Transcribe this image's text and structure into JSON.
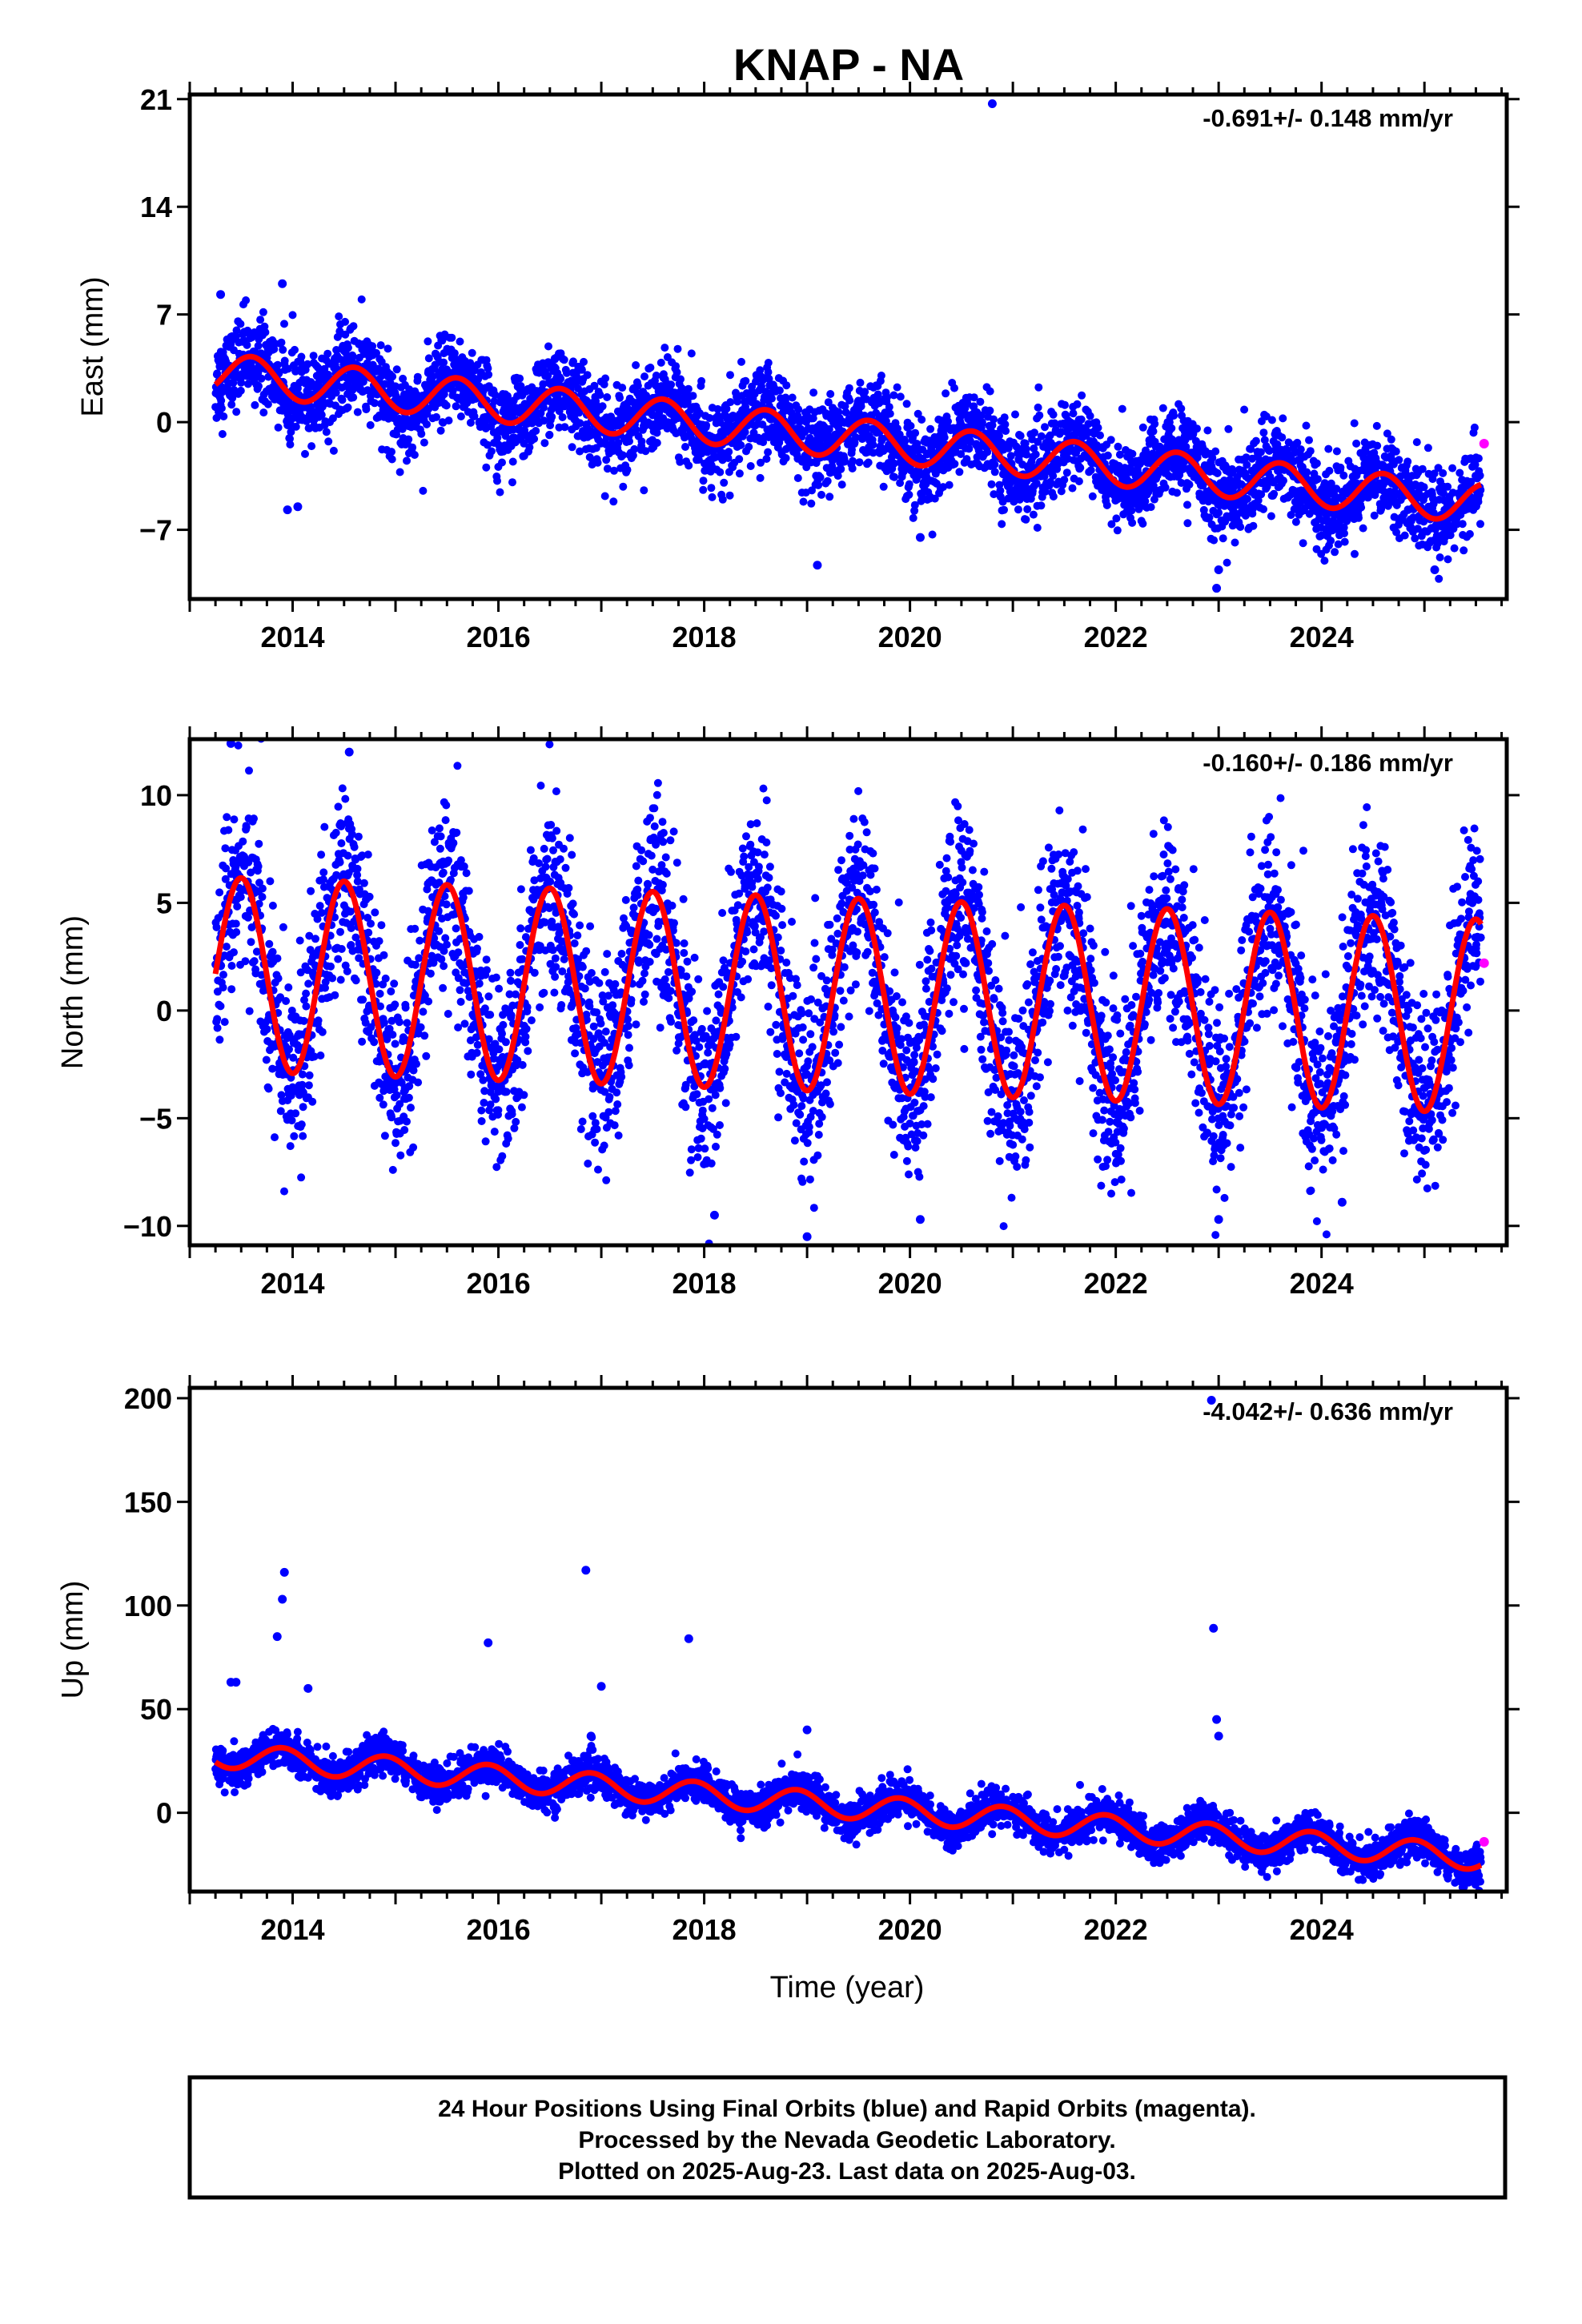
{
  "title": "KNAP - NA",
  "chart_data": [
    {
      "type": "scatter",
      "panel": "east",
      "ylabel": "East (mm)",
      "rate_label": "-0.691+/- 0.148 mm/yr",
      "ylim": [
        -11.5,
        21.3
      ],
      "yticks": [
        {
          "value": 21,
          "label": "21"
        },
        {
          "value": 14,
          "label": "14"
        },
        {
          "value": 7,
          "label": "7"
        },
        {
          "value": 0,
          "label": "0"
        },
        {
          "value": -7,
          "label": "−7"
        }
      ],
      "xlim": [
        2013.0,
        2025.8
      ],
      "xticks": [
        {
          "value": 2014,
          "label": "2014"
        },
        {
          "value": 2016,
          "label": "2016"
        },
        {
          "value": 2018,
          "label": "2018"
        },
        {
          "value": 2020,
          "label": "2020"
        },
        {
          "value": 2022,
          "label": "2022"
        },
        {
          "value": 2024,
          "label": "2024"
        }
      ],
      "model": {
        "start": 2013.25,
        "end": 2025.55,
        "intercept": 3.2,
        "slope": -0.691,
        "amplitude": 1.3,
        "peak": 0.6
      },
      "scatter_width": 1.4,
      "outliers": [
        [
          2013.3,
          8.3
        ],
        [
          2013.9,
          9.0
        ],
        [
          2014.05,
          -5.5
        ],
        [
          2013.95,
          -5.7
        ],
        [
          2019.1,
          -9.3
        ],
        [
          2020.1,
          -7.5
        ],
        [
          2020.8,
          20.7
        ],
        [
          2022.98,
          -10.8
        ],
        [
          2023.0,
          -9.6
        ],
        [
          2025.1,
          -9.6
        ]
      ],
      "series": [
        {
          "name": "Final Orbits",
          "color": "#0000ff"
        },
        {
          "name": "Rapid Orbits",
          "color": "#ff00ff",
          "points": [
            [
              2025.58,
              -1.4
            ]
          ]
        },
        {
          "name": "Model",
          "color": "#ff0000"
        }
      ]
    },
    {
      "type": "scatter",
      "panel": "north",
      "ylabel": "North (mm)",
      "rate_label": "-0.160+/- 0.186 mm/yr",
      "ylim": [
        -10.9,
        12.6
      ],
      "yticks": [
        {
          "value": 10,
          "label": "10"
        },
        {
          "value": 5,
          "label": "5"
        },
        {
          "value": 0,
          "label": "0"
        },
        {
          "value": -5,
          "label": "−5"
        },
        {
          "value": -10,
          "label": "−10"
        }
      ],
      "xlim": [
        2013.0,
        2025.8
      ],
      "xticks": [
        {
          "value": 2014,
          "label": "2014"
        },
        {
          "value": 2016,
          "label": "2016"
        },
        {
          "value": 2018,
          "label": "2018"
        },
        {
          "value": 2020,
          "label": "2020"
        },
        {
          "value": 2022,
          "label": "2022"
        },
        {
          "value": 2024,
          "label": "2024"
        }
      ],
      "model": {
        "start": 2013.25,
        "end": 2025.55,
        "intercept": 1.7,
        "slope": -0.16,
        "amplitude": 4.5,
        "peak": 0.5
      },
      "scatter_width": 2.2,
      "outliers": [
        [
          2013.4,
          12.4
        ],
        [
          2014.55,
          12.0
        ],
        [
          2019.0,
          -10.5
        ],
        [
          2020.1,
          -9.7
        ],
        [
          2023.0,
          -9.7
        ],
        [
          2024.2,
          -8.9
        ],
        [
          2018.1,
          -9.5
        ]
      ],
      "series": [
        {
          "name": "Final Orbits",
          "color": "#0000ff"
        },
        {
          "name": "Rapid Orbits",
          "color": "#ff00ff",
          "points": [
            [
              2025.58,
              2.2
            ]
          ]
        },
        {
          "name": "Model",
          "color": "#ff0000"
        }
      ]
    },
    {
      "type": "scatter",
      "panel": "up",
      "ylabel": "Up (mm)",
      "xlabel": "Time (year)",
      "rate_label": "-4.042+/- 0.636 mm/yr",
      "ylim": [
        -38,
        205
      ],
      "yticks": [
        {
          "value": 200,
          "label": "200"
        },
        {
          "value": 150,
          "label": "150"
        },
        {
          "value": 100,
          "label": "100"
        },
        {
          "value": 50,
          "label": "50"
        },
        {
          "value": 0,
          "label": "0"
        }
      ],
      "xlim": [
        2013.0,
        2025.8
      ],
      "xticks": [
        {
          "value": 2014,
          "label": "2014"
        },
        {
          "value": 2016,
          "label": "2016"
        },
        {
          "value": 2018,
          "label": "2018"
        },
        {
          "value": 2020,
          "label": "2020"
        },
        {
          "value": 2022,
          "label": "2022"
        },
        {
          "value": 2024,
          "label": "2024"
        }
      ],
      "model": {
        "start": 2013.25,
        "end": 2025.55,
        "intercept": 28,
        "slope": -4.042,
        "amplitude": 6,
        "peak": 0.9
      },
      "scatter_width": 4.5,
      "outliers": [
        [
          2013.4,
          63
        ],
        [
          2013.45,
          63
        ],
        [
          2013.85,
          85
        ],
        [
          2013.9,
          103
        ],
        [
          2013.92,
          116
        ],
        [
          2014.15,
          60
        ],
        [
          2015.9,
          82
        ],
        [
          2016.85,
          117
        ],
        [
          2016.9,
          37
        ],
        [
          2017.0,
          61
        ],
        [
          2017.85,
          84
        ],
        [
          2019.0,
          40
        ],
        [
          2022.95,
          89
        ],
        [
          2022.98,
          45
        ],
        [
          2023.0,
          37
        ],
        [
          2022.93,
          199
        ]
      ],
      "series": [
        {
          "name": "Final Orbits",
          "color": "#0000ff"
        },
        {
          "name": "Rapid Orbits",
          "color": "#ff00ff",
          "points": [
            [
              2025.58,
              -14
            ]
          ]
        },
        {
          "name": "Model",
          "color": "#ff0000"
        }
      ]
    }
  ],
  "footer": {
    "line1": "24 Hour Positions Using Final Orbits (blue) and Rapid Orbits (magenta).",
    "line2": "Processed by the Nevada Geodetic Laboratory.",
    "line3": "Plotted on 2025-Aug-23. Last data on 2025-Aug-03."
  }
}
